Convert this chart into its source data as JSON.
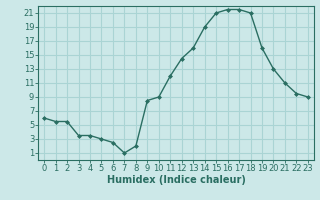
{
  "x": [
    0,
    1,
    2,
    3,
    4,
    5,
    6,
    7,
    8,
    9,
    10,
    11,
    12,
    13,
    14,
    15,
    16,
    17,
    18,
    19,
    20,
    21,
    22,
    23
  ],
  "y": [
    6,
    5.5,
    5.5,
    3.5,
    3.5,
    3,
    2.5,
    1,
    2,
    8.5,
    9,
    12,
    14.5,
    16,
    19,
    21,
    21.5,
    21.5,
    21,
    16,
    13,
    11,
    9.5,
    9
  ],
  "line_color": "#2a6e62",
  "marker_color": "#2a6e62",
  "bg_color": "#cce8e8",
  "grid_color": "#aad4d4",
  "xlabel": "Humidex (Indice chaleur)",
  "xlabel_fontsize": 7,
  "tick_fontsize": 6,
  "ylim": [
    0,
    22
  ],
  "xlim": [
    -0.5,
    23.5
  ],
  "yticks": [
    1,
    3,
    5,
    7,
    9,
    11,
    13,
    15,
    17,
    19,
    21
  ],
  "xticks": [
    0,
    1,
    2,
    3,
    4,
    5,
    6,
    7,
    8,
    9,
    10,
    11,
    12,
    13,
    14,
    15,
    16,
    17,
    18,
    19,
    20,
    21,
    22,
    23
  ]
}
